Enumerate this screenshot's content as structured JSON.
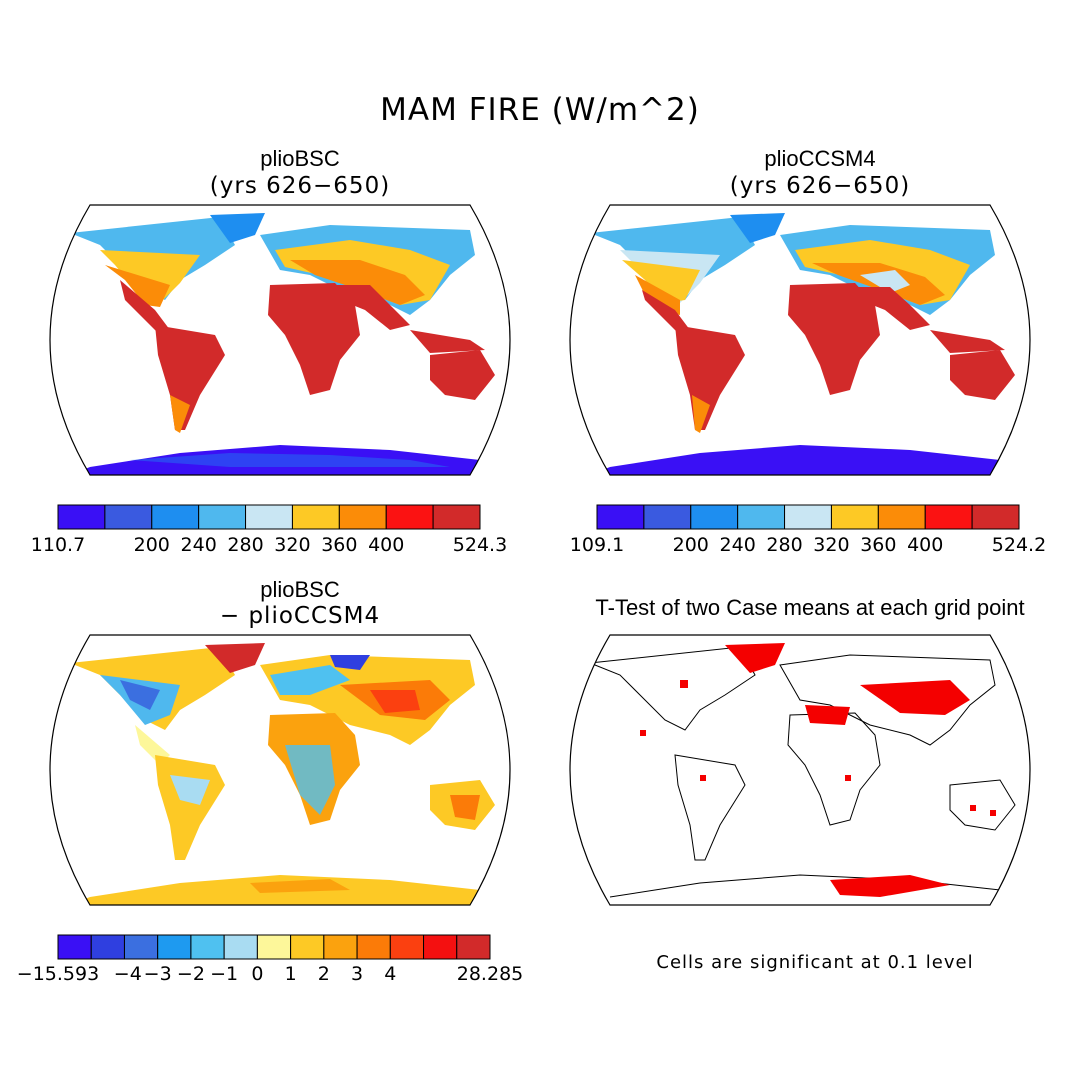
{
  "title": "MAM FIRE (W/m^2)",
  "panels": {
    "bsc": {
      "title": "plioBSC",
      "subtitle": "(yrs 626−650)"
    },
    "ccsm": {
      "title": "plioCCSM4",
      "subtitle": "(yrs 626−650)"
    },
    "diff": {
      "title": "plioBSC",
      "subtitle": "− plioCCSM4"
    },
    "ttest": {
      "title": "T-Test of two Case means at each grid point",
      "note": "Cells are significant at 0.1 level"
    }
  },
  "colorbars": {
    "bsc": {
      "colors": [
        "#3a10f5",
        "#3a5ae0",
        "#1e8ef0",
        "#4fb8ee",
        "#c9e6f3",
        "#fdc925",
        "#fb8c08",
        "#fb1212",
        "#d22a2a"
      ],
      "labels": [
        "110.7",
        "200",
        "240",
        "280",
        "320",
        "360",
        "400",
        "524.3"
      ]
    },
    "ccsm": {
      "colors": [
        "#3a10f5",
        "#3a5ae0",
        "#1e8ef0",
        "#4fb8ee",
        "#c9e6f3",
        "#fdc925",
        "#fb8c08",
        "#fb1212",
        "#d22a2a"
      ],
      "labels": [
        "109.1",
        "200",
        "240",
        "280",
        "320",
        "360",
        "400",
        "524.2"
      ]
    },
    "diff": {
      "colors": [
        "#3a10f5",
        "#2f3fe0",
        "#3b6fe0",
        "#1e9af0",
        "#4fc1f0",
        "#a9dcf2",
        "#fdf79a",
        "#fdc925",
        "#fba20e",
        "#fb7b08",
        "#fb4010",
        "#f41010",
        "#d22a2a"
      ],
      "labels": [
        "−15.593",
        "−4",
        "−3",
        "−2",
        "−1",
        "0",
        "1",
        "2",
        "3",
        "4",
        "28.285"
      ]
    }
  }
}
